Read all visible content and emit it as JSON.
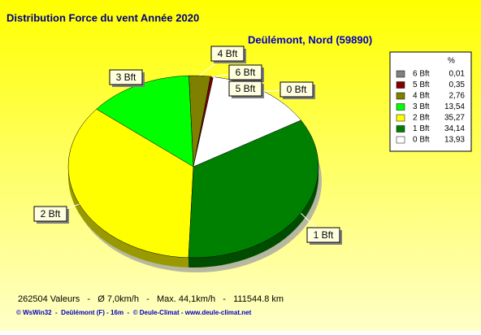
{
  "chart_data": {
    "type": "pie",
    "title": "Distribution Force du vent  Année 2020",
    "subtitle": "Deülémont, Nord (59890)",
    "legend_header": "%",
    "categories": [
      "6 Bft",
      "5 Bft",
      "4 Bft",
      "3 Bft",
      "2 Bft",
      "1 Bft",
      "0 Bft"
    ],
    "values": [
      0.01,
      0.35,
      2.76,
      13.54,
      35.27,
      34.14,
      13.93
    ],
    "value_labels": [
      "0,01",
      "0,35",
      "2,76",
      "13,54",
      "35,27",
      "34,14",
      "13,93"
    ],
    "colors": [
      "#808080",
      "#800000",
      "#808000",
      "#00ff00",
      "#ffff00",
      "#008000",
      "#ffffff"
    ],
    "legend": "right",
    "footer": "262504 Valeurs   -   Ø 7,0km/h   -   Max. 44,1km/h   -   111544.8 km",
    "credit": "© WsWin32  -  Deûlémont (F) - 16m  -  © Deule-Climat - www.deule-climat.net"
  }
}
